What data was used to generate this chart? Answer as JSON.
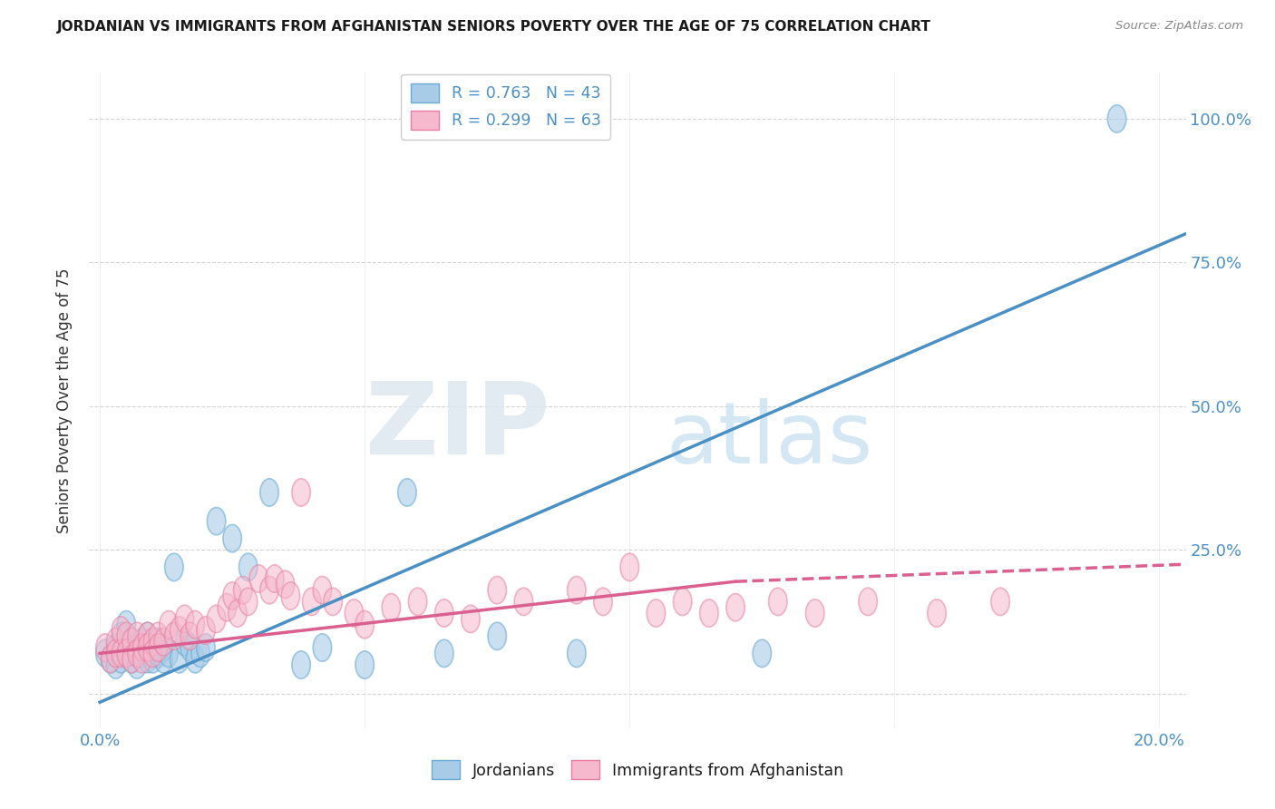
{
  "title": "JORDANIAN VS IMMIGRANTS FROM AFGHANISTAN SENIORS POVERTY OVER THE AGE OF 75 CORRELATION CHART",
  "source": "Source: ZipAtlas.com",
  "ylabel_label": "Seniors Poverty Over the Age of 75",
  "x_tick_vals": [
    0.0,
    0.05,
    0.1,
    0.15,
    0.2
  ],
  "x_tick_labels": [
    "0.0%",
    "",
    "",
    "",
    "20.0%"
  ],
  "y_tick_vals": [
    0.0,
    0.25,
    0.5,
    0.75,
    1.0
  ],
  "y_tick_labels_right": [
    "",
    "25.0%",
    "50.0%",
    "75.0%",
    "100.0%"
  ],
  "xlim": [
    -0.002,
    0.205
  ],
  "ylim": [
    -0.06,
    1.08
  ],
  "legend1_label": "R = 0.763   N = 43",
  "legend2_label": "R = 0.299   N = 63",
  "legend3_label": "Jordanians",
  "legend4_label": "Immigrants from Afghanistan",
  "blue_scatter_color": "#a8cce8",
  "blue_edge_color": "#6aaad4",
  "pink_scatter_color": "#f5b8cc",
  "pink_edge_color": "#e87fa0",
  "line_blue_color": "#4a90c4",
  "line_pink_color": "#d96090",
  "scatter_blue_x": [
    0.001,
    0.002,
    0.003,
    0.003,
    0.004,
    0.004,
    0.005,
    0.005,
    0.006,
    0.006,
    0.007,
    0.007,
    0.008,
    0.008,
    0.009,
    0.009,
    0.01,
    0.01,
    0.011,
    0.011,
    0.012,
    0.012,
    0.013,
    0.014,
    0.015,
    0.016,
    0.017,
    0.018,
    0.019,
    0.02,
    0.022,
    0.025,
    0.028,
    0.032,
    0.038,
    0.042,
    0.05,
    0.058,
    0.065,
    0.075,
    0.09,
    0.125,
    0.192
  ],
  "scatter_blue_y": [
    0.07,
    0.06,
    0.08,
    0.05,
    0.1,
    0.06,
    0.07,
    0.12,
    0.09,
    0.06,
    0.08,
    0.05,
    0.09,
    0.07,
    0.1,
    0.06,
    0.08,
    0.06,
    0.09,
    0.07,
    0.08,
    0.06,
    0.07,
    0.22,
    0.06,
    0.09,
    0.08,
    0.06,
    0.07,
    0.08,
    0.3,
    0.27,
    0.22,
    0.35,
    0.05,
    0.08,
    0.05,
    0.35,
    0.07,
    0.1,
    0.07,
    0.07,
    1.0
  ],
  "scatter_pink_x": [
    0.001,
    0.002,
    0.003,
    0.003,
    0.004,
    0.004,
    0.005,
    0.005,
    0.006,
    0.006,
    0.007,
    0.007,
    0.008,
    0.008,
    0.009,
    0.009,
    0.01,
    0.01,
    0.011,
    0.011,
    0.012,
    0.013,
    0.014,
    0.015,
    0.016,
    0.017,
    0.018,
    0.02,
    0.022,
    0.024,
    0.025,
    0.026,
    0.027,
    0.028,
    0.03,
    0.032,
    0.033,
    0.035,
    0.036,
    0.038,
    0.04,
    0.042,
    0.044,
    0.048,
    0.05,
    0.055,
    0.06,
    0.065,
    0.07,
    0.075,
    0.08,
    0.09,
    0.095,
    0.1,
    0.105,
    0.11,
    0.115,
    0.12,
    0.128,
    0.135,
    0.145,
    0.158,
    0.17
  ],
  "scatter_pink_y": [
    0.08,
    0.06,
    0.09,
    0.07,
    0.11,
    0.07,
    0.1,
    0.07,
    0.09,
    0.06,
    0.1,
    0.07,
    0.08,
    0.06,
    0.1,
    0.08,
    0.09,
    0.07,
    0.1,
    0.08,
    0.09,
    0.12,
    0.1,
    0.11,
    0.13,
    0.1,
    0.12,
    0.11,
    0.13,
    0.15,
    0.17,
    0.14,
    0.18,
    0.16,
    0.2,
    0.18,
    0.2,
    0.19,
    0.17,
    0.35,
    0.16,
    0.18,
    0.16,
    0.14,
    0.12,
    0.15,
    0.16,
    0.14,
    0.13,
    0.18,
    0.16,
    0.18,
    0.16,
    0.22,
    0.14,
    0.16,
    0.14,
    0.15,
    0.16,
    0.14,
    0.16,
    0.14,
    0.16
  ],
  "blue_line_x0": 0.0,
  "blue_line_x1": 0.205,
  "blue_line_y0": -0.015,
  "blue_line_y1": 0.8,
  "pink_line_solid_x0": 0.0,
  "pink_line_solid_x1": 0.12,
  "pink_line_solid_y0": 0.07,
  "pink_line_solid_y1": 0.195,
  "pink_line_dash_x0": 0.12,
  "pink_line_dash_x1": 0.205,
  "pink_line_dash_y0": 0.195,
  "pink_line_dash_y1": 0.225,
  "watermark_zip": "ZIP",
  "watermark_atlas": "atlas",
  "background_color": "#ffffff",
  "grid_color": "#d0d0d0"
}
